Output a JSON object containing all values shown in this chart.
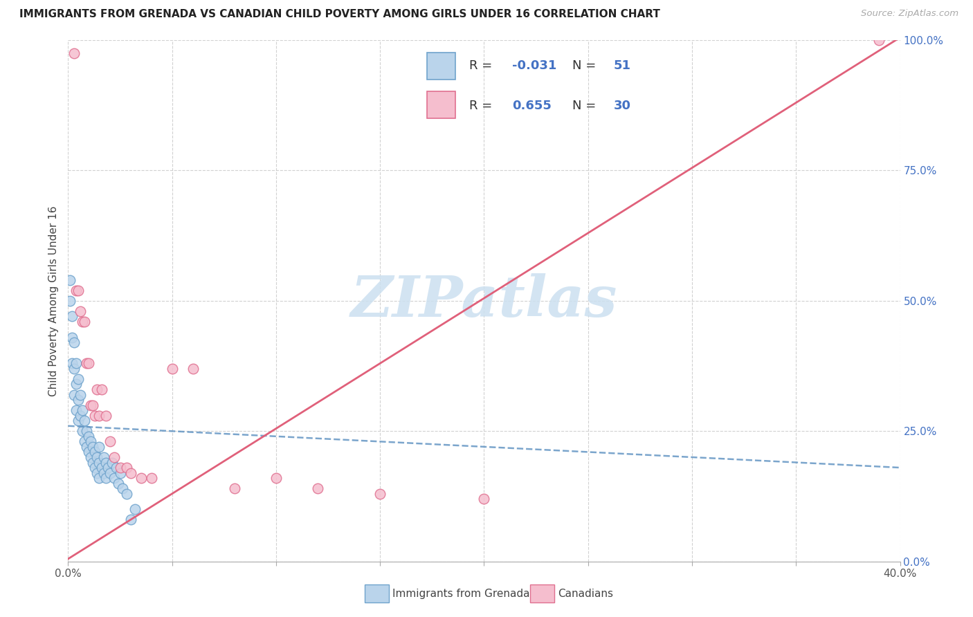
{
  "title": "IMMIGRANTS FROM GRENADA VS CANADIAN CHILD POVERTY AMONG GIRLS UNDER 16 CORRELATION CHART",
  "source": "Source: ZipAtlas.com",
  "ylabel": "Child Poverty Among Girls Under 16",
  "legend_label1": "Immigrants from Grenada",
  "legend_label2": "Canadians",
  "r1_text": "-0.031",
  "n1_text": "51",
  "r2_text": "0.655",
  "n2_text": "30",
  "xlim": [
    0.0,
    0.4
  ],
  "ylim": [
    0.0,
    1.0
  ],
  "xticks": [
    0.0,
    0.05,
    0.1,
    0.15,
    0.2,
    0.25,
    0.3,
    0.35,
    0.4
  ],
  "xtick_labels_show": [
    "0.0%",
    "",
    "",
    "",
    "",
    "",
    "",
    "",
    "40.0%"
  ],
  "yticks": [
    0.0,
    0.25,
    0.5,
    0.75,
    1.0
  ],
  "ytick_labels_right": [
    "0.0%",
    "25.0%",
    "50.0%",
    "75.0%",
    "100.0%"
  ],
  "color_blue_fill": "#bad4eb",
  "color_blue_edge": "#6fa3cc",
  "color_pink_fill": "#f5bece",
  "color_pink_edge": "#e07090",
  "color_blue_line": "#5a8fc0",
  "color_pink_line": "#e0607a",
  "blue_slope": -0.2,
  "blue_intercept": 0.26,
  "pink_slope": 2.5,
  "pink_intercept": 0.005,
  "blue_dots_x": [
    0.001,
    0.001,
    0.002,
    0.002,
    0.002,
    0.003,
    0.003,
    0.003,
    0.004,
    0.004,
    0.004,
    0.005,
    0.005,
    0.005,
    0.006,
    0.006,
    0.007,
    0.007,
    0.008,
    0.008,
    0.009,
    0.009,
    0.01,
    0.01,
    0.011,
    0.011,
    0.012,
    0.012,
    0.013,
    0.013,
    0.014,
    0.014,
    0.015,
    0.015,
    0.015,
    0.016,
    0.017,
    0.017,
    0.018,
    0.018,
    0.019,
    0.02,
    0.021,
    0.022,
    0.023,
    0.024,
    0.025,
    0.026,
    0.028,
    0.03,
    0.032
  ],
  "blue_dots_y": [
    0.54,
    0.5,
    0.47,
    0.43,
    0.38,
    0.42,
    0.37,
    0.32,
    0.38,
    0.34,
    0.29,
    0.35,
    0.31,
    0.27,
    0.32,
    0.28,
    0.29,
    0.25,
    0.27,
    0.23,
    0.25,
    0.22,
    0.24,
    0.21,
    0.23,
    0.2,
    0.22,
    0.19,
    0.21,
    0.18,
    0.2,
    0.17,
    0.19,
    0.22,
    0.16,
    0.18,
    0.2,
    0.17,
    0.19,
    0.16,
    0.18,
    0.17,
    0.19,
    0.16,
    0.18,
    0.15,
    0.17,
    0.14,
    0.13,
    0.08,
    0.1
  ],
  "pink_dots_x": [
    0.003,
    0.004,
    0.005,
    0.006,
    0.007,
    0.008,
    0.009,
    0.01,
    0.011,
    0.012,
    0.013,
    0.014,
    0.015,
    0.016,
    0.018,
    0.02,
    0.022,
    0.025,
    0.028,
    0.03,
    0.035,
    0.04,
    0.05,
    0.06,
    0.08,
    0.1,
    0.12,
    0.15,
    0.2,
    0.39
  ],
  "pink_dots_y": [
    0.975,
    0.52,
    0.52,
    0.48,
    0.46,
    0.46,
    0.38,
    0.38,
    0.3,
    0.3,
    0.28,
    0.33,
    0.28,
    0.33,
    0.28,
    0.23,
    0.2,
    0.18,
    0.18,
    0.17,
    0.16,
    0.16,
    0.37,
    0.37,
    0.14,
    0.16,
    0.14,
    0.13,
    0.12,
    1.0
  ]
}
